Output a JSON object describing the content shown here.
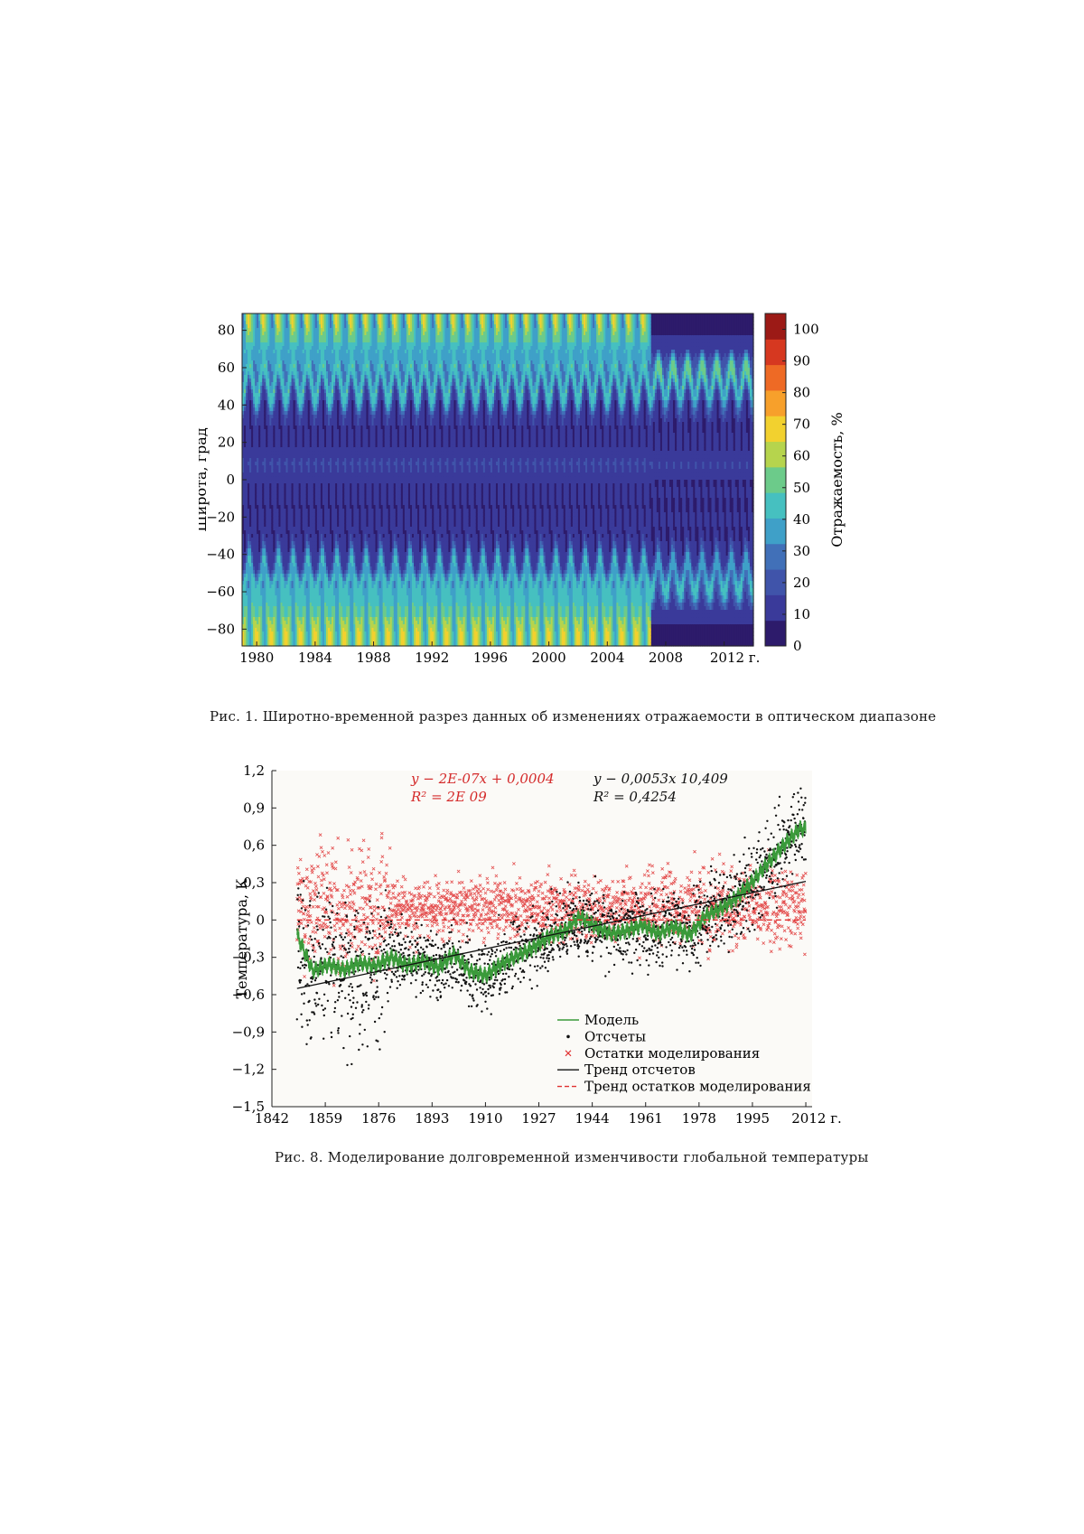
{
  "figures": [
    {
      "caption": "Рис. 1. Широтно-временной разрез данных об изменениях отражаемости в оптическом диапазоне",
      "chart_data": {
        "type": "heatmap",
        "ylabel": "Широта, град",
        "colorbar_label": "Отражаемость, %",
        "x_ticks": [
          "1980",
          "1984",
          "1988",
          "1992",
          "1996",
          "2000",
          "2004",
          "2008",
          "2012 г."
        ],
        "y_ticks": [
          "80",
          "60",
          "40",
          "20",
          "0",
          "−20",
          "−40",
          "−60",
          "−80"
        ],
        "colorbar_ticks": [
          "0",
          "10",
          "20",
          "30",
          "40",
          "50",
          "60",
          "70",
          "80",
          "90",
          "100"
        ],
        "xlim": [
          1979,
          2014
        ],
        "ylim": [
          -89,
          89
        ],
        "clim": [
          0,
          105
        ],
        "data_end_high_lat": 2007,
        "colormap": [
          "#2d1b6b",
          "#3a3a9a",
          "#4054aa",
          "#4170b8",
          "#3fa0c8",
          "#46c0c0",
          "#6ccb8a",
          "#b6d44d",
          "#f2d12f",
          "#f7a02b",
          "#ee6a25",
          "#d63820",
          "#9c1a16"
        ]
      }
    },
    {
      "caption": "Рис. 8. Моделирование долговременной изменчивости глобальной температуры",
      "chart_data": {
        "type": "scatter",
        "ylabel": "Температура, К",
        "x_ticks": [
          "1842",
          "1859",
          "1876",
          "1893",
          "1910",
          "1927",
          "1944",
          "1961",
          "1978",
          "1995",
          "2012 г."
        ],
        "y_ticks": [
          "1,2",
          "0,9",
          "0,6",
          "0,3",
          "0",
          "−0,3",
          "−0,6",
          "−0,9",
          "−1,2",
          "−1,5"
        ],
        "xlim": [
          1842,
          2014
        ],
        "ylim": [
          -1.5,
          1.2
        ],
        "equations": {
          "residual_trend": {
            "line1": "y − 2E-07x + 0,0004",
            "line2": "R² = 2E 09",
            "color": "#d42a2a"
          },
          "samples_trend": {
            "line1": "y − 0,0053x    10,409",
            "line2": "R² = 0,4254",
            "color": "#111111"
          }
        },
        "legend": [
          {
            "label": "Модель",
            "symbol": "line",
            "color": "#3a9a3a"
          },
          {
            "label": "Отсчеты",
            "symbol": "dot",
            "color": "#111111"
          },
          {
            "label": "Остатки моделирования",
            "symbol": "cross",
            "color": "#e03030"
          },
          {
            "label": "Тренд отсчетов",
            "symbol": "line",
            "color": "#111111"
          },
          {
            "label": "Тренд остатков моделирования",
            "symbol": "dash",
            "color": "#e03030"
          }
        ],
        "series": [
          {
            "name": "Модель",
            "x": [
              1850,
              1855,
              1860,
              1865,
              1870,
              1875,
              1880,
              1885,
              1890,
              1895,
              1900,
              1905,
              1910,
              1915,
              1920,
              1925,
              1930,
              1935,
              1940,
              1945,
              1950,
              1955,
              1960,
              1965,
              1970,
              1975,
              1980,
              1985,
              1990,
              1995,
              2000,
              2005,
              2010
            ],
            "y": [
              -0.12,
              -0.4,
              -0.35,
              -0.4,
              -0.35,
              -0.38,
              -0.3,
              -0.36,
              -0.32,
              -0.38,
              -0.28,
              -0.42,
              -0.45,
              -0.35,
              -0.28,
              -0.22,
              -0.14,
              -0.1,
              0.02,
              -0.05,
              -0.1,
              -0.08,
              -0.04,
              -0.12,
              -0.06,
              -0.12,
              0.04,
              0.1,
              0.18,
              0.3,
              0.45,
              0.6,
              0.74
            ]
          },
          {
            "name": "Тренд отсчетов",
            "x": [
              1850,
              2012
            ],
            "y": [
              -0.55,
              0.31
            ]
          },
          {
            "name": "Тренд остатков моделирования",
            "x": [
              1850,
              2012
            ],
            "y": [
              0.0,
              0.0
            ]
          }
        ],
        "point_series": {
          "samples": "Отсчеты",
          "residuals": "Остатки моделирования",
          "count_per_series": 1900,
          "years": [
            1850,
            2012
          ]
        }
      }
    }
  ]
}
